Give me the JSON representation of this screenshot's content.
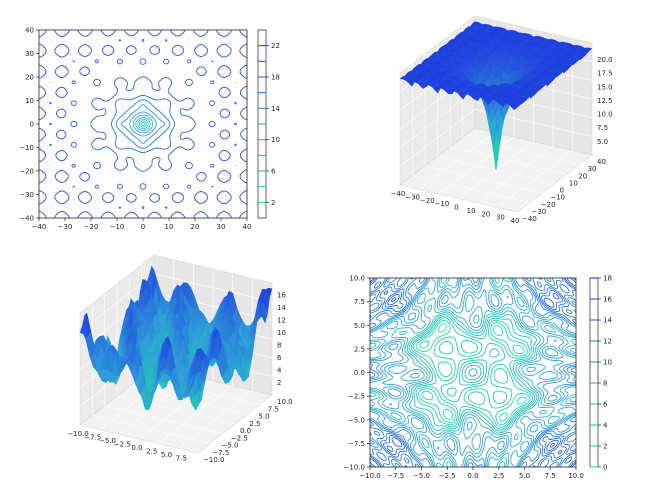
{
  "chart_data": [
    {
      "type": "contour",
      "panel": "top-left",
      "title": "",
      "xlabel": "",
      "ylabel": "",
      "xlim": [
        -40,
        40
      ],
      "ylim": [
        -40,
        40
      ],
      "x_ticks": [
        "−40",
        "−30",
        "−20",
        "−10",
        "0",
        "10",
        "20",
        "30",
        "40"
      ],
      "y_ticks": [
        "40",
        "30",
        "20",
        "10",
        "0",
        "−10",
        "−20",
        "−30",
        "−40"
      ],
      "x_tick_values": [
        -40,
        -30,
        -20,
        -10,
        0,
        10,
        20,
        30,
        40
      ],
      "y_tick_values": [
        40,
        30,
        20,
        10,
        0,
        -10,
        -20,
        -30,
        -40
      ],
      "colorbar": {
        "ticks": [
          "22",
          "18",
          "14",
          "10",
          "6",
          "2"
        ],
        "values": [
          22,
          18,
          14,
          10,
          6,
          2
        ],
        "range": [
          0,
          24
        ],
        "levels": [
          2,
          4,
          6,
          8,
          10,
          12,
          14,
          16,
          18,
          20,
          22
        ]
      },
      "colormap": [
        "#19e6a0",
        "#2d9fd8",
        "#1f3dde"
      ]
    },
    {
      "type": "surface",
      "panel": "top-right",
      "title": "",
      "x_ticks": [
        "−40",
        "−30",
        "−20",
        "−10",
        "0",
        "10",
        "20",
        "30",
        "40"
      ],
      "y_ticks": [
        "−40",
        "−30",
        "−20",
        "−10",
        "0",
        "10",
        "20",
        "30",
        "40"
      ],
      "z_ticks": [
        "20.0",
        "17.5",
        "15.0",
        "12.5",
        "10.0",
        "7.5",
        "5.0"
      ],
      "x_tick_values": [
        -40,
        -30,
        -20,
        -10,
        0,
        10,
        20,
        30,
        40
      ],
      "y_tick_values": [
        -40,
        -30,
        -20,
        -10,
        0,
        10,
        20,
        30,
        40
      ],
      "z_tick_values": [
        20.0,
        17.5,
        15.0,
        12.5,
        10.0,
        7.5,
        5.0
      ],
      "zlim": [
        2.5,
        22
      ],
      "colormap": [
        "#19e6a0",
        "#2d9fd8",
        "#1f3dde"
      ]
    },
    {
      "type": "surface",
      "panel": "bottom-left",
      "title": "",
      "x_ticks": [
        "−10.0",
        "−7.5",
        "−5.0",
        "−2.5",
        "0.0",
        "2.5",
        "5.0",
        "7.5"
      ],
      "y_ticks": [
        "−10.0",
        "−7.5",
        "−5.0",
        "−2.5",
        "0.0",
        "2.5",
        "5.0",
        "7.5",
        "10.0"
      ],
      "z_ticks": [
        "16",
        "14",
        "12",
        "10",
        "8",
        "6",
        "4",
        "2"
      ],
      "x_tick_values": [
        -10.0,
        -7.5,
        -5.0,
        -2.5,
        0.0,
        2.5,
        5.0,
        7.5
      ],
      "y_tick_values": [
        -10.0,
        -7.5,
        -5.0,
        -2.5,
        0.0,
        2.5,
        5.0,
        7.5,
        10.0
      ],
      "z_tick_values": [
        16,
        14,
        12,
        10,
        8,
        6,
        4,
        2
      ],
      "zlim": [
        0,
        17
      ],
      "colormap": [
        "#19e6a0",
        "#2d9fd8",
        "#1f3dde"
      ]
    },
    {
      "type": "contour",
      "panel": "bottom-right",
      "title": "",
      "xlabel": "",
      "ylabel": "",
      "xlim": [
        -10,
        10
      ],
      "ylim": [
        -10,
        10
      ],
      "x_ticks": [
        "−10.0",
        "−7.5",
        "−5.0",
        "−2.5",
        "0.0",
        "2.5",
        "5.0",
        "7.5",
        "10.0"
      ],
      "y_ticks": [
        "10.0",
        "7.5",
        "5.0",
        "2.5",
        "0.0",
        "−2.5",
        "−5.0",
        "−7.5",
        "−10.0"
      ],
      "x_tick_values": [
        -10,
        -7.5,
        -5,
        -2.5,
        0,
        2.5,
        5,
        7.5,
        10
      ],
      "y_tick_values": [
        10,
        7.5,
        5,
        2.5,
        0,
        -2.5,
        -5,
        -7.5,
        -10
      ],
      "colorbar": {
        "ticks": [
          "18",
          "16",
          "14",
          "12",
          "10",
          "8",
          "6",
          "4",
          "2",
          "0"
        ],
        "values": [
          18,
          16,
          14,
          12,
          10,
          8,
          6,
          4,
          2,
          0
        ],
        "range": [
          0,
          18
        ],
        "levels": [
          0,
          2,
          4,
          6,
          8,
          10,
          12,
          14,
          16,
          18
        ]
      },
      "colormap": [
        "#19e6a0",
        "#2d9fd8",
        "#1f3dde"
      ]
    }
  ]
}
